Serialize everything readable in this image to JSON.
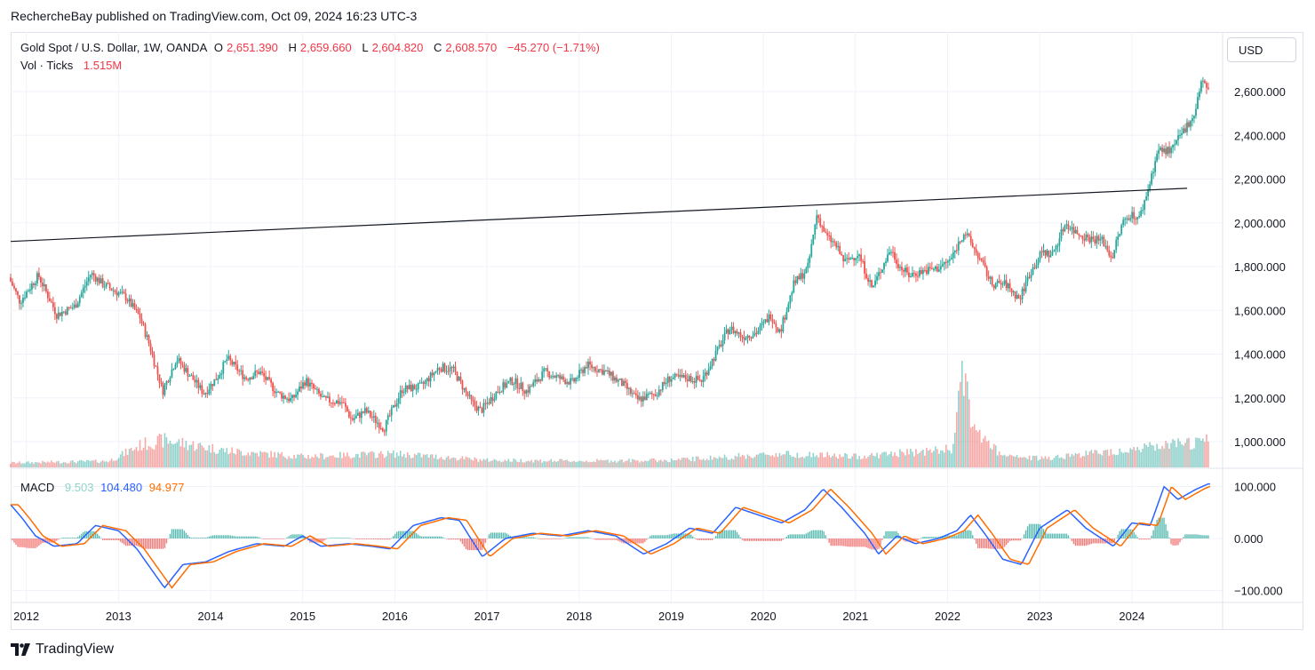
{
  "header": {
    "text": "RechercheBay published on TradingView.com, Oct 09, 2024 16:23 UTC-3"
  },
  "legend": {
    "symbol": "Gold Spot / U.S. Dollar, 1W, OANDA",
    "o_label": "O",
    "o": "2,651.390",
    "h_label": "H",
    "h": "2,659.660",
    "l_label": "L",
    "l": "2,604.820",
    "c_label": "C",
    "c": "2,608.570",
    "change": "−45.270 (−1.71%)",
    "vol_label": "Vol · Ticks",
    "vol": "1.515M",
    "macd_label": "MACD",
    "macd_hist": "9.503",
    "macd_line": "104.480",
    "macd_signal": "94.977"
  },
  "currency_button": "USD",
  "footer": {
    "brand": "TradingView"
  },
  "colors": {
    "up": "#26a69a",
    "down": "#ef5350",
    "macd": "#2962ff",
    "signal": "#ff6d00",
    "hist_up": "#26a69a",
    "hist_down": "#ef5350"
  },
  "chart_data": {
    "type": "candlestick",
    "interval": "1W",
    "price_axis": {
      "ticks": [
        "1,000.000",
        "1,200.000",
        "1,400.000",
        "1,600.000",
        "1,800.000",
        "2,000.000",
        "2,200.000",
        "2,400.000",
        "2,600.000"
      ],
      "values": [
        1000,
        1200,
        1400,
        1600,
        1800,
        2000,
        2200,
        2400,
        2600
      ]
    },
    "macd_axis": {
      "ticks": [
        "100.000",
        "0.000",
        "−100.000"
      ],
      "values": [
        100,
        0,
        -100
      ]
    },
    "x_axis": {
      "labels": [
        "2012",
        "2013",
        "2014",
        "2015",
        "2016",
        "2017",
        "2018",
        "2019",
        "2020",
        "2021",
        "2022",
        "2023",
        "2024"
      ],
      "years": [
        2012,
        2013,
        2014,
        2015,
        2016,
        2017,
        2018,
        2019,
        2020,
        2021,
        2022,
        2023,
        2024
      ]
    },
    "x_range": [
      2011.83,
      2024.85
    ],
    "price_range": [
      880,
      2740
    ],
    "price_path": [
      [
        2011.83,
        1750
      ],
      [
        2011.95,
        1640
      ],
      [
        2012.15,
        1760
      ],
      [
        2012.35,
        1580
      ],
      [
        2012.55,
        1620
      ],
      [
        2012.72,
        1770
      ],
      [
        2012.85,
        1720
      ],
      [
        2013.1,
        1660
      ],
      [
        2013.25,
        1570
      ],
      [
        2013.35,
        1450
      ],
      [
        2013.5,
        1230
      ],
      [
        2013.65,
        1380
      ],
      [
        2013.8,
        1300
      ],
      [
        2013.95,
        1220
      ],
      [
        2014.1,
        1300
      ],
      [
        2014.2,
        1380
      ],
      [
        2014.4,
        1290
      ],
      [
        2014.55,
        1320
      ],
      [
        2014.75,
        1220
      ],
      [
        2014.9,
        1190
      ],
      [
        2015.05,
        1280
      ],
      [
        2015.25,
        1190
      ],
      [
        2015.45,
        1180
      ],
      [
        2015.55,
        1100
      ],
      [
        2015.7,
        1140
      ],
      [
        2015.9,
        1060
      ],
      [
        2016.1,
        1240
      ],
      [
        2016.3,
        1250
      ],
      [
        2016.5,
        1340
      ],
      [
        2016.65,
        1330
      ],
      [
        2016.85,
        1180
      ],
      [
        2016.95,
        1140
      ],
      [
        2017.15,
        1240
      ],
      [
        2017.3,
        1280
      ],
      [
        2017.45,
        1230
      ],
      [
        2017.65,
        1320
      ],
      [
        2017.8,
        1290
      ],
      [
        2017.95,
        1270
      ],
      [
        2018.1,
        1350
      ],
      [
        2018.3,
        1320
      ],
      [
        2018.5,
        1260
      ],
      [
        2018.65,
        1190
      ],
      [
        2018.85,
        1220
      ],
      [
        2019.0,
        1290
      ],
      [
        2019.2,
        1290
      ],
      [
        2019.35,
        1280
      ],
      [
        2019.5,
        1400
      ],
      [
        2019.65,
        1520
      ],
      [
        2019.8,
        1480
      ],
      [
        2019.95,
        1500
      ],
      [
        2020.1,
        1580
      ],
      [
        2020.2,
        1500
      ],
      [
        2020.35,
        1720
      ],
      [
        2020.5,
        1790
      ],
      [
        2020.6,
        2040
      ],
      [
        2020.7,
        1940
      ],
      [
        2020.8,
        1900
      ],
      [
        2020.9,
        1820
      ],
      [
        2021.05,
        1860
      ],
      [
        2021.2,
        1700
      ],
      [
        2021.4,
        1880
      ],
      [
        2021.5,
        1800
      ],
      [
        2021.6,
        1760
      ],
      [
        2021.75,
        1780
      ],
      [
        2021.9,
        1790
      ],
      [
        2022.05,
        1830
      ],
      [
        2022.2,
        1960
      ],
      [
        2022.35,
        1850
      ],
      [
        2022.5,
        1720
      ],
      [
        2022.65,
        1720
      ],
      [
        2022.8,
        1650
      ],
      [
        2022.9,
        1760
      ],
      [
        2023.05,
        1870
      ],
      [
        2023.15,
        1850
      ],
      [
        2023.3,
        2000
      ],
      [
        2023.4,
        1960
      ],
      [
        2023.55,
        1930
      ],
      [
        2023.7,
        1920
      ],
      [
        2023.8,
        1840
      ],
      [
        2023.92,
        2000
      ],
      [
        2024.0,
        2040
      ],
      [
        2024.1,
        2020
      ],
      [
        2024.2,
        2160
      ],
      [
        2024.3,
        2330
      ],
      [
        2024.45,
        2330
      ],
      [
        2024.55,
        2400
      ],
      [
        2024.7,
        2500
      ],
      [
        2024.78,
        2660
      ],
      [
        2024.83,
        2608
      ]
    ],
    "volume_path": [
      [
        2011.83,
        0.05
      ],
      [
        2012.9,
        0.07
      ],
      [
        2013.25,
        0.25
      ],
      [
        2013.5,
        0.3
      ],
      [
        2014.2,
        0.18
      ],
      [
        2015.0,
        0.12
      ],
      [
        2016.0,
        0.15
      ],
      [
        2017.0,
        0.08
      ],
      [
        2018.0,
        0.07
      ],
      [
        2019.0,
        0.08
      ],
      [
        2020.2,
        0.15
      ],
      [
        2021.0,
        0.12
      ],
      [
        2022.05,
        0.2
      ],
      [
        2022.15,
        1.0
      ],
      [
        2022.3,
        0.4
      ],
      [
        2022.6,
        0.12
      ],
      [
        2023.0,
        0.1
      ],
      [
        2024.0,
        0.2
      ],
      [
        2024.5,
        0.25
      ],
      [
        2024.85,
        0.3
      ]
    ],
    "macd_path": [
      [
        2011.83,
        65
      ],
      [
        2011.95,
        40
      ],
      [
        2012.1,
        5
      ],
      [
        2012.3,
        -15
      ],
      [
        2012.55,
        -10
      ],
      [
        2012.75,
        25
      ],
      [
        2013.0,
        15
      ],
      [
        2013.2,
        -20
      ],
      [
        2013.5,
        -95
      ],
      [
        2013.7,
        -50
      ],
      [
        2013.95,
        -45
      ],
      [
        2014.2,
        -25
      ],
      [
        2014.5,
        -10
      ],
      [
        2014.8,
        -15
      ],
      [
        2015.0,
        5
      ],
      [
        2015.2,
        -15
      ],
      [
        2015.5,
        -10
      ],
      [
        2015.75,
        -15
      ],
      [
        2015.95,
        -20
      ],
      [
        2016.2,
        25
      ],
      [
        2016.5,
        40
      ],
      [
        2016.7,
        35
      ],
      [
        2016.95,
        -35
      ],
      [
        2017.2,
        0
      ],
      [
        2017.5,
        10
      ],
      [
        2017.8,
        5
      ],
      [
        2018.1,
        15
      ],
      [
        2018.4,
        5
      ],
      [
        2018.7,
        -30
      ],
      [
        2018.95,
        -10
      ],
      [
        2019.2,
        20
      ],
      [
        2019.45,
        10
      ],
      [
        2019.7,
        60
      ],
      [
        2019.95,
        45
      ],
      [
        2020.2,
        30
      ],
      [
        2020.45,
        55
      ],
      [
        2020.65,
        95
      ],
      [
        2020.85,
        60
      ],
      [
        2021.1,
        10
      ],
      [
        2021.25,
        -30
      ],
      [
        2021.45,
        5
      ],
      [
        2021.65,
        -10
      ],
      [
        2021.9,
        0
      ],
      [
        2022.1,
        15
      ],
      [
        2022.25,
        45
      ],
      [
        2022.4,
        10
      ],
      [
        2022.6,
        -40
      ],
      [
        2022.8,
        -50
      ],
      [
        2023.0,
        20
      ],
      [
        2023.3,
        55
      ],
      [
        2023.5,
        20
      ],
      [
        2023.8,
        -15
      ],
      [
        2024.0,
        30
      ],
      [
        2024.2,
        25
      ],
      [
        2024.35,
        100
      ],
      [
        2024.5,
        75
      ],
      [
        2024.7,
        95
      ],
      [
        2024.83,
        105
      ]
    ],
    "signal_lag": 0.08,
    "trendline": {
      "from": [
        2011.83,
        1915
      ],
      "to": [
        2024.6,
        2158
      ]
    }
  }
}
